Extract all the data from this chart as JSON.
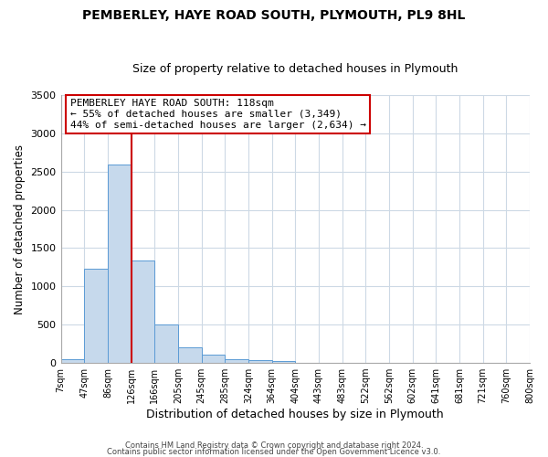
{
  "title": "PEMBERLEY, HAYE ROAD SOUTH, PLYMOUTH, PL9 8HL",
  "subtitle": "Size of property relative to detached houses in Plymouth",
  "xlabel": "Distribution of detached houses by size in Plymouth",
  "ylabel": "Number of detached properties",
  "bar_values": [
    50,
    1230,
    2590,
    1340,
    500,
    200,
    110,
    50,
    40,
    30,
    0,
    0,
    0,
    0,
    0,
    0,
    0,
    0,
    0,
    0
  ],
  "bar_labels": [
    "7sqm",
    "47sqm",
    "86sqm",
    "126sqm",
    "166sqm",
    "205sqm",
    "245sqm",
    "285sqm",
    "324sqm",
    "364sqm",
    "404sqm",
    "443sqm",
    "483sqm",
    "522sqm",
    "562sqm",
    "602sqm",
    "641sqm",
    "681sqm",
    "721sqm",
    "760sqm",
    "800sqm"
  ],
  "bar_color": "#c6d9ec",
  "bar_edge_color": "#5b9bd5",
  "ylim": [
    0,
    3500
  ],
  "yticks": [
    0,
    500,
    1000,
    1500,
    2000,
    2500,
    3000,
    3500
  ],
  "property_line_x": 3,
  "property_line_color": "#cc0000",
  "annotation_title": "PEMBERLEY HAYE ROAD SOUTH: 118sqm",
  "annotation_line1": "← 55% of detached houses are smaller (3,349)",
  "annotation_line2": "44% of semi-detached houses are larger (2,634) →",
  "annotation_box_color": "#ffffff",
  "annotation_box_edge": "#cc0000",
  "footer1": "Contains HM Land Registry data © Crown copyright and database right 2024.",
  "footer2": "Contains public sector information licensed under the Open Government Licence v3.0.",
  "background_color": "#ffffff",
  "grid_color": "#cdd9e5"
}
